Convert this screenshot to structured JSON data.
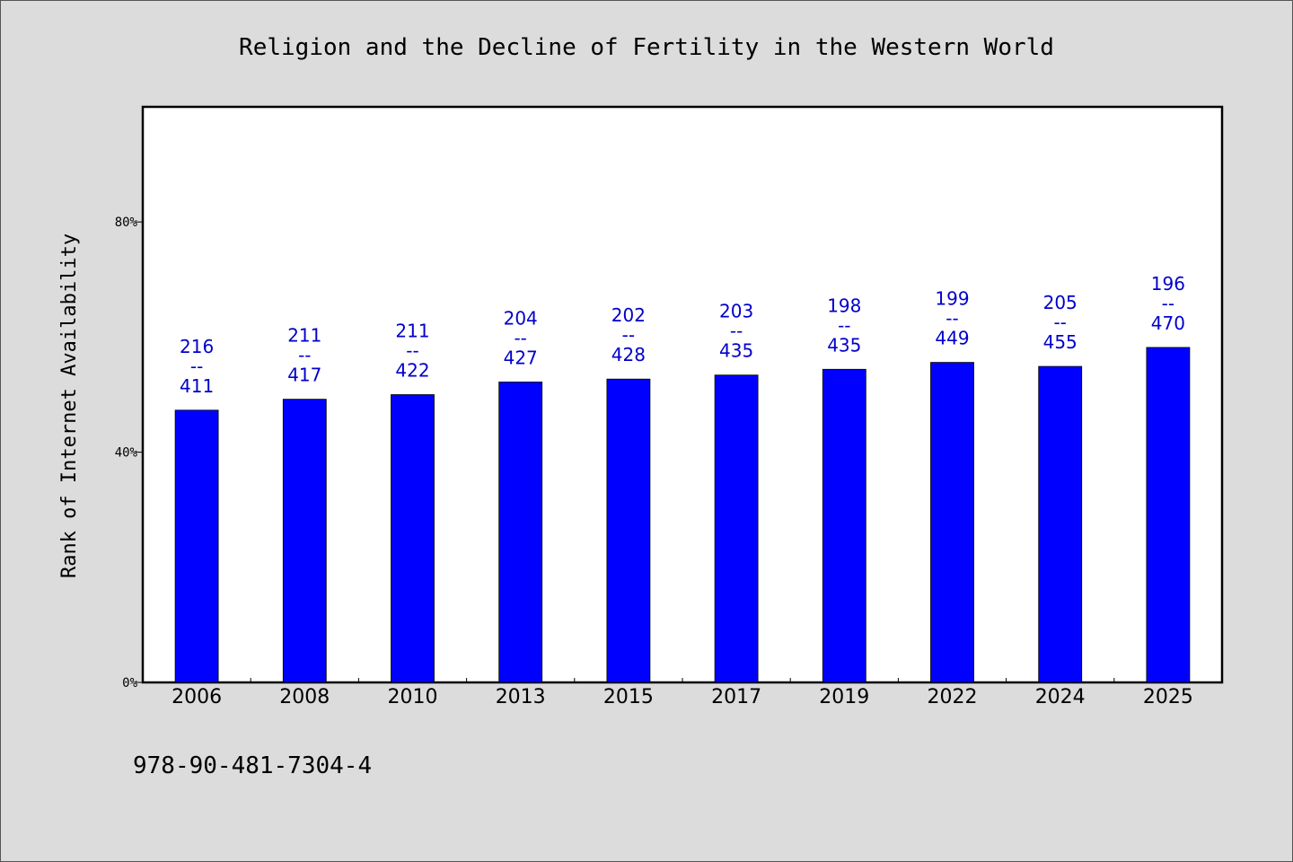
{
  "chart_data": {
    "type": "bar",
    "title": "Religion and the Decline of Fertility in the Western World",
    "ylabel": "Rank of Internet Availability",
    "xlabel": "",
    "categories": [
      "2006",
      "2008",
      "2010",
      "2013",
      "2015",
      "2017",
      "2019",
      "2022",
      "2024",
      "2025"
    ],
    "values": [
      47.3,
      49.2,
      50.0,
      52.2,
      52.7,
      53.4,
      54.4,
      55.6,
      54.9,
      58.2
    ],
    "value_format": "percent",
    "ylim": [
      0,
      100
    ],
    "yticks": [
      {
        "value": 0,
        "label": "0%"
      },
      {
        "value": 40,
        "label": "40%"
      },
      {
        "value": 80,
        "label": "80%"
      }
    ],
    "bar_labels": [
      {
        "top": "216",
        "sep": "--",
        "bottom": "411"
      },
      {
        "top": "211",
        "sep": "--",
        "bottom": "417"
      },
      {
        "top": "211",
        "sep": "--",
        "bottom": "422"
      },
      {
        "top": "204",
        "sep": "--",
        "bottom": "427"
      },
      {
        "top": "202",
        "sep": "--",
        "bottom": "428"
      },
      {
        "top": "203",
        "sep": "--",
        "bottom": "435"
      },
      {
        "top": "198",
        "sep": "--",
        "bottom": "435"
      },
      {
        "top": "199",
        "sep": "--",
        "bottom": "449"
      },
      {
        "top": "205",
        "sep": "--",
        "bottom": "455"
      },
      {
        "top": "196",
        "sep": "--",
        "bottom": "470"
      }
    ],
    "grid": false,
    "legend": "none",
    "colors": {
      "bar": "#0000ff",
      "bar_label": "#0000cc",
      "plot_background": "#ffffff",
      "page_background": "#dcdcdc"
    }
  },
  "footer": {
    "isbn": "978-90-481-7304-4"
  }
}
